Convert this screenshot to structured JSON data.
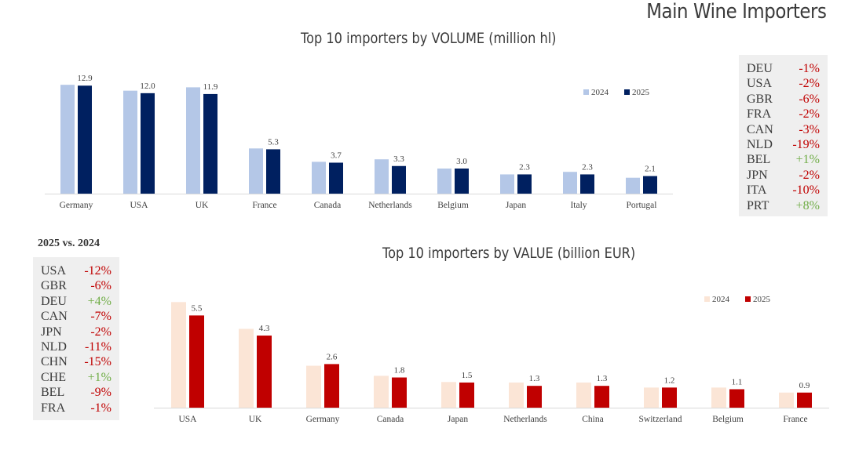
{
  "page_title": "Main Wine Importers",
  "change_heading": "2025 vs. 2024",
  "colors": {
    "vol_2024": "#b4c7e7",
    "vol_2025": "#002060",
    "val_2024": "#fbe5d6",
    "val_2025": "#c00000",
    "negative": "#c00000",
    "positive": "#70ad47"
  },
  "volume_changes": [
    {
      "code": "DEU",
      "change": "-1%"
    },
    {
      "code": "USA",
      "change": "-2%"
    },
    {
      "code": "GBR",
      "change": "-6%"
    },
    {
      "code": "FRA",
      "change": "-2%"
    },
    {
      "code": "CAN",
      "change": "-3%"
    },
    {
      "code": "NLD",
      "change": "-19%"
    },
    {
      "code": "BEL",
      "change": "+1%"
    },
    {
      "code": "JPN",
      "change": "-2%"
    },
    {
      "code": "ITA",
      "change": "-10%"
    },
    {
      "code": "PRT",
      "change": "+8%"
    }
  ],
  "value_changes": [
    {
      "code": "USA",
      "change": "-12%"
    },
    {
      "code": "GBR",
      "change": "-6%"
    },
    {
      "code": "DEU",
      "change": "+4%"
    },
    {
      "code": "CAN",
      "change": "-7%"
    },
    {
      "code": "JPN",
      "change": "-2%"
    },
    {
      "code": "NLD",
      "change": "-11%"
    },
    {
      "code": "CHN",
      "change": "-15%"
    },
    {
      "code": "CHE",
      "change": "+1%"
    },
    {
      "code": "BEL",
      "change": "-9%"
    },
    {
      "code": "FRA",
      "change": "-1%"
    }
  ],
  "chart_data": [
    {
      "type": "bar",
      "title": "Top 10 importers by VOLUME (million hl)",
      "categories": [
        "Germany",
        "USA",
        "UK",
        "France",
        "Canada",
        "Netherlands",
        "Belgium",
        "Japan",
        "Italy",
        "Portugal"
      ],
      "series": [
        {
          "name": "2024",
          "values": [
            13.0,
            12.3,
            12.7,
            5.4,
            3.8,
            4.1,
            3.0,
            2.3,
            2.6,
            1.9
          ],
          "labels": false
        },
        {
          "name": "2025",
          "values": [
            12.9,
            12.0,
            11.9,
            5.3,
            3.7,
            3.3,
            3.0,
            2.3,
            2.3,
            2.1
          ],
          "labels": true
        }
      ],
      "ylim": [
        0,
        14
      ],
      "legend": "top-right",
      "grid": false
    },
    {
      "type": "bar",
      "title": "Top 10 importers by VALUE (billion EUR)",
      "categories": [
        "USA",
        "UK",
        "Germany",
        "Canada",
        "Japan",
        "Netherlands",
        "China",
        "Switzerland",
        "Belgium",
        "France"
      ],
      "series": [
        {
          "name": "2024",
          "values": [
            6.3,
            4.7,
            2.5,
            1.9,
            1.53,
            1.5,
            1.5,
            1.2,
            1.2,
            0.9
          ],
          "labels": false
        },
        {
          "name": "2025",
          "values": [
            5.5,
            4.3,
            2.6,
            1.8,
            1.5,
            1.3,
            1.3,
            1.2,
            1.1,
            0.9
          ],
          "labels": true
        }
      ],
      "ylim": [
        0,
        6.5
      ],
      "legend": "top-right",
      "grid": false
    }
  ]
}
